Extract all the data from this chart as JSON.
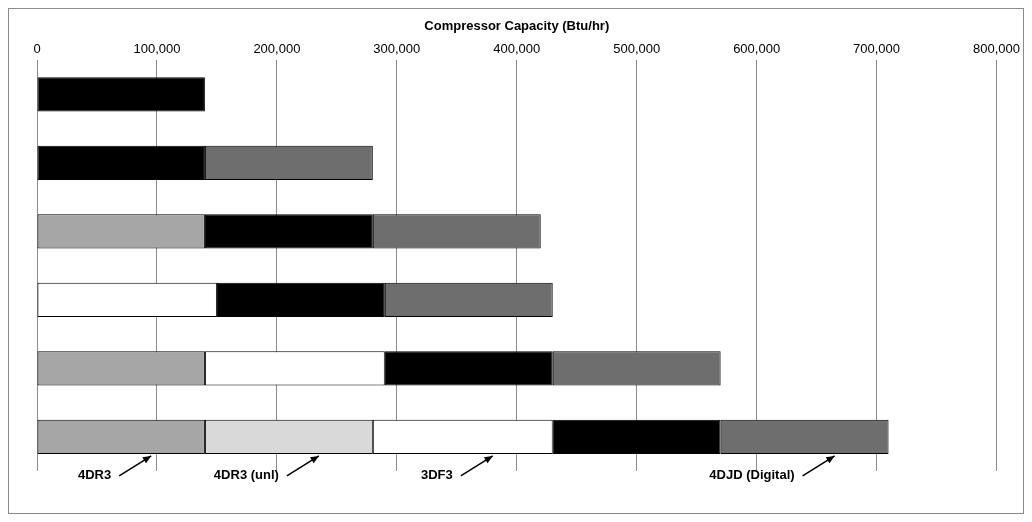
{
  "chart_data": {
    "type": "bar",
    "orientation": "horizontal",
    "stacked": true,
    "xlabel": "Compressor Capacity (Btu/hr)",
    "categories": [
      null,
      null,
      null,
      null,
      null,
      null
    ],
    "series": [
      {
        "name": "4DR3",
        "color": "#a6a6a6",
        "values": [
          null,
          null,
          140000,
          null,
          140000,
          140000
        ]
      },
      {
        "name": "4DR3 (unl)",
        "color": "#d9d9d9",
        "values": [
          null,
          null,
          null,
          null,
          null,
          140000
        ]
      },
      {
        "name": "3DF3",
        "color": "#ffffff",
        "values": [
          null,
          null,
          null,
          150000,
          150000,
          150000
        ]
      },
      {
        "color": "#000000",
        "values": [
          140000,
          140000,
          140000,
          140000,
          140000,
          140000
        ]
      },
      {
        "name": "4DJD (Digital)",
        "color": "#6e6e6e",
        "values": [
          null,
          140000,
          140000,
          140000,
          140000,
          140000
        ]
      }
    ],
    "xlim": [
      0,
      800000
    ],
    "xticks": [
      0,
      {
        "value": 100000,
        "label": "100,000"
      },
      {
        "value": 200000,
        "label": "200,000"
      },
      {
        "value": 300000,
        "label": "300,000"
      },
      {
        "value": 400000,
        "label": "400,000"
      },
      {
        "value": 500000,
        "label": "500,000"
      },
      {
        "value": 600000,
        "label": "600,000"
      },
      {
        "value": 700000,
        "label": "700,000"
      },
      {
        "value": 800000,
        "label": "800,000"
      }
    ],
    "grid": "x",
    "legend": false,
    "tick_labels": "x"
  }
}
